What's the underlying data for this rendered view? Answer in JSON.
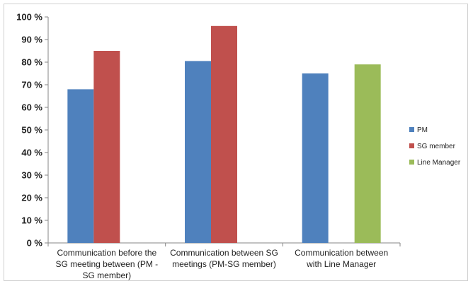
{
  "colors": {
    "PM": "#4f81bd",
    "SG member": "#c0504d",
    "Line Manager": "#9bbb59",
    "axis": "#868686",
    "grid": "#d9d9d9"
  },
  "chart_data": {
    "type": "bar",
    "title": "",
    "xlabel": "",
    "ylabel": "",
    "ylim": [
      0,
      100
    ],
    "y_ticks": [
      "0 %",
      "10 %",
      "20 %",
      "30 %",
      "40 %",
      "50 %",
      "60 %",
      "70 %",
      "80 %",
      "90 %",
      "100 %"
    ],
    "y_tick_values": [
      0,
      10,
      20,
      30,
      40,
      50,
      60,
      70,
      80,
      90,
      100
    ],
    "grid": false,
    "legend_position": "right",
    "categories": [
      [
        "Communication before the",
        "SG meeting between (PM -",
        "SG member)"
      ],
      [
        "Communication between SG",
        "meetings (PM-SG member)"
      ],
      [
        "Communication between",
        "with Line Manager"
      ]
    ],
    "series": [
      {
        "name": "PM",
        "values": [
          68,
          80.5,
          75
        ]
      },
      {
        "name": "SG member",
        "values": [
          85,
          96,
          null
        ]
      },
      {
        "name": "Line Manager",
        "values": [
          null,
          null,
          79
        ]
      }
    ]
  }
}
